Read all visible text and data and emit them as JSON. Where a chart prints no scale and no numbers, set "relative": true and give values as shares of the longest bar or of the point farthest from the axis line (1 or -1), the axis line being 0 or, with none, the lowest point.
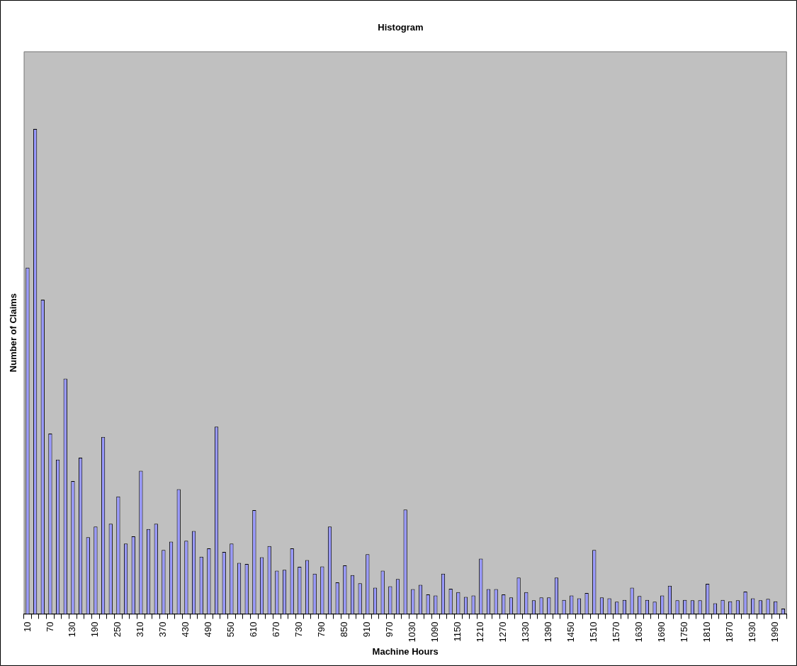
{
  "chart_data": {
    "type": "bar",
    "title": "Histogram",
    "xlabel": "Machine Hours",
    "ylabel": "Number of Claims",
    "relative": true,
    "grid": false,
    "legend": false,
    "color": "#9999ff",
    "categories": [
      "10",
      null,
      null,
      "70",
      null,
      null,
      "130",
      null,
      null,
      "190",
      null,
      null,
      "250",
      null,
      null,
      "310",
      null,
      null,
      "370",
      null,
      null,
      "430",
      null,
      null,
      "490",
      null,
      null,
      "550",
      null,
      null,
      "610",
      null,
      null,
      "670",
      null,
      null,
      "730",
      null,
      null,
      "790",
      null,
      null,
      "850",
      null,
      null,
      "910",
      null,
      null,
      "970",
      null,
      null,
      "1030",
      null,
      null,
      "1090",
      null,
      null,
      "1150",
      null,
      null,
      "1210",
      null,
      null,
      "1270",
      null,
      null,
      "1330",
      null,
      null,
      "1390",
      null,
      null,
      "1450",
      null,
      null,
      "1510",
      null,
      null,
      "1570",
      null,
      null,
      "1630",
      null,
      null,
      "1690",
      null,
      null,
      "1750",
      null,
      null,
      "1810",
      null,
      null,
      "1870",
      null,
      null,
      "1930",
      null,
      null,
      "1990",
      null
    ],
    "values": [
      0.714,
      1,
      0.648,
      0.372,
      0.318,
      0.485,
      0.274,
      0.322,
      0.158,
      0.18,
      0.365,
      0.186,
      0.242,
      0.145,
      0.16,
      0.295,
      0.175,
      0.186,
      0.132,
      0.149,
      0.257,
      0.151,
      0.171,
      0.118,
      0.135,
      0.386,
      0.128,
      0.145,
      0.105,
      0.103,
      0.214,
      0.117,
      0.14,
      0.089,
      0.091,
      0.135,
      0.097,
      0.111,
      0.083,
      0.098,
      0.18,
      0.065,
      0.1,
      0.08,
      0.063,
      0.123,
      0.054,
      0.089,
      0.057,
      0.072,
      0.215,
      0.051,
      0.06,
      0.04,
      0.038,
      0.083,
      0.052,
      0.045,
      0.035,
      0.038,
      0.114,
      0.051,
      0.051,
      0.04,
      0.034,
      0.075,
      0.045,
      0.028,
      0.034,
      0.034,
      0.075,
      0.029,
      0.038,
      0.032,
      0.043,
      0.132,
      0.034,
      0.032,
      0.025,
      0.029,
      0.054,
      0.037,
      0.029,
      0.025,
      0.038,
      0.058,
      0.028,
      0.029,
      0.028,
      0.028,
      0.062,
      0.022,
      0.029,
      0.026,
      0.028,
      0.046,
      0.032,
      0.028,
      0.031,
      0.026,
      0.011
    ]
  }
}
